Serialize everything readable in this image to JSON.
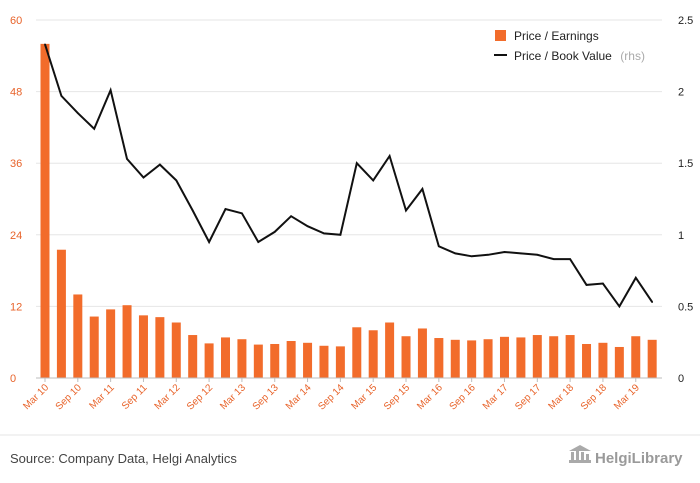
{
  "chart_data": {
    "type": "bar+line",
    "title": "",
    "x_labels": [
      "Mar 10",
      "Sep 10",
      "Mar 11",
      "Sep 11",
      "Mar 12",
      "Sep 12",
      "Mar 13",
      "Sep 13",
      "Mar 14",
      "Sep 14",
      "Mar 15",
      "Sep 15",
      "Mar 16",
      "Sep 16",
      "Mar 17",
      "Sep 17",
      "Mar 18",
      "Sep 18",
      "Mar 19"
    ],
    "y_left": {
      "ticks": [
        "0",
        "12",
        "24",
        "36",
        "48",
        "60"
      ],
      "range": [
        0,
        60
      ]
    },
    "y_right": {
      "ticks": [
        "0",
        "0.5",
        "1",
        "1.5",
        "2",
        "2.5"
      ],
      "range": [
        0,
        2.5
      ]
    },
    "series": [
      {
        "name": "Price / Earnings",
        "type": "bar",
        "axis": "left",
        "color": "#f26c2b",
        "values": [
          56.0,
          21.5,
          14.0,
          10.3,
          11.5,
          12.2,
          10.5,
          10.2,
          9.3,
          7.2,
          5.8,
          6.8,
          6.5,
          5.6,
          5.7,
          6.2,
          5.9,
          5.4,
          5.3,
          8.5,
          8.0,
          9.3,
          7.0,
          8.3,
          6.7,
          6.4,
          6.3,
          6.5,
          6.9,
          6.8,
          7.2,
          7.0,
          7.2,
          5.7,
          5.9,
          5.2,
          7.0,
          6.4
        ]
      },
      {
        "name": "Price / Book Value",
        "axis_note": "(rhs)",
        "type": "line",
        "axis": "right",
        "color": "#111111",
        "values": [
          2.33,
          1.97,
          1.85,
          1.74,
          2.01,
          1.53,
          1.4,
          1.49,
          1.38,
          1.17,
          0.95,
          1.18,
          1.15,
          0.95,
          1.02,
          1.13,
          1.06,
          1.01,
          1.0,
          1.5,
          1.38,
          1.55,
          1.17,
          1.32,
          0.92,
          0.87,
          0.85,
          0.86,
          0.88,
          0.87,
          0.86,
          0.83,
          0.83,
          0.65,
          0.66,
          0.5,
          0.7,
          0.53
        ]
      }
    ],
    "legend": {
      "position": "top-right"
    },
    "grid": true
  },
  "footer": {
    "source": "Source: Company Data, Helgi Analytics",
    "brand": "HelgiLibrary"
  }
}
